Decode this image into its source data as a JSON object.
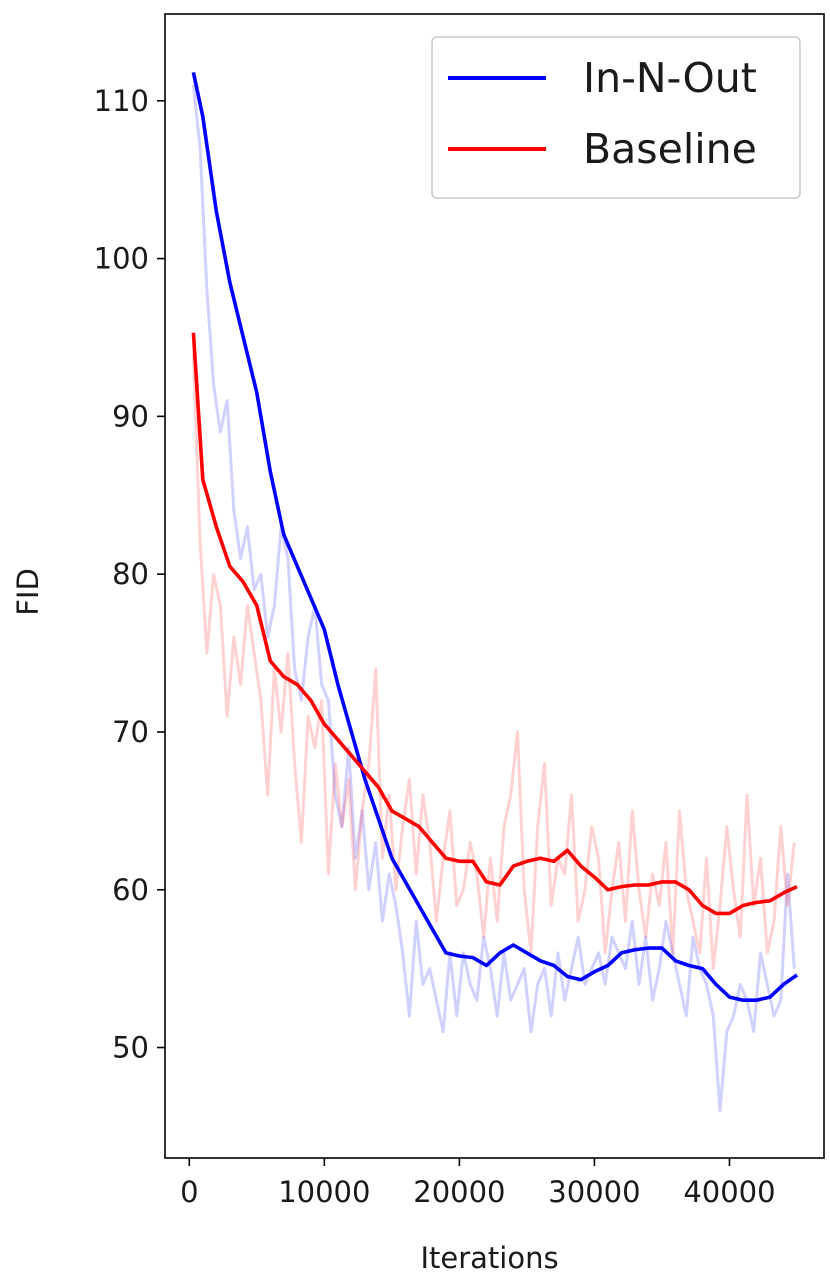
{
  "chart_data": {
    "type": "line",
    "title": "",
    "xlabel": "Iterations",
    "ylabel": "FID",
    "xlim": [
      -1800,
      47000
    ],
    "ylim": [
      43,
      115.5
    ],
    "xticks": [
      0,
      10000,
      20000,
      30000,
      40000
    ],
    "xtick_labels": [
      "0",
      "10000",
      "20000",
      "30000",
      "40000"
    ],
    "yticks": [
      50,
      60,
      70,
      80,
      90,
      100,
      110
    ],
    "ytick_labels": [
      "50",
      "60",
      "70",
      "80",
      "90",
      "100",
      "110"
    ],
    "grid": false,
    "legend": {
      "position": "top-right"
    },
    "series": [
      {
        "name": "In-N-Out",
        "color": "#0000ff",
        "x": [
          300,
          1000,
          2000,
          3000,
          4000,
          5000,
          6000,
          7000,
          8000,
          9000,
          10000,
          11000,
          12000,
          13000,
          14000,
          15000,
          16000,
          17000,
          18000,
          19000,
          20000,
          21000,
          22000,
          23000,
          24000,
          25000,
          26000,
          27000,
          28000,
          29000,
          30000,
          31000,
          32000,
          33000,
          34000,
          35000,
          36000,
          37000,
          38000,
          39000,
          40000,
          41000,
          42000,
          43000,
          44000,
          45000
        ],
        "values": [
          111.8,
          109,
          103,
          98.5,
          95,
          91.5,
          86.5,
          82.5,
          80.5,
          78.5,
          76.5,
          73,
          70,
          67,
          64.5,
          62,
          60.5,
          59,
          57.5,
          56,
          55.8,
          55.7,
          55.2,
          56,
          56.5,
          56,
          55.5,
          55.2,
          54.5,
          54.3,
          54.8,
          55.2,
          56,
          56.2,
          56.3,
          56.3,
          55.5,
          55.2,
          55,
          54,
          53.2,
          53,
          53,
          53.2,
          54,
          54.6
        ]
      },
      {
        "name": "Baseline",
        "color": "#ff0000",
        "x": [
          300,
          1000,
          2000,
          3000,
          4000,
          5000,
          6000,
          7000,
          8000,
          9000,
          10000,
          11000,
          12000,
          13000,
          14000,
          15000,
          16000,
          17000,
          18000,
          19000,
          20000,
          21000,
          22000,
          23000,
          24000,
          25000,
          26000,
          27000,
          28000,
          29000,
          30000,
          31000,
          32000,
          33000,
          34000,
          35000,
          36000,
          37000,
          38000,
          39000,
          40000,
          41000,
          42000,
          43000,
          44000,
          45000
        ],
        "values": [
          95.3,
          86,
          83,
          80.5,
          79.5,
          78,
          74.5,
          73.5,
          73,
          72,
          70.5,
          69.5,
          68.5,
          67.5,
          66.5,
          65,
          64.5,
          64,
          63,
          62,
          61.8,
          61.8,
          60.5,
          60.3,
          61.5,
          61.8,
          62,
          61.8,
          62.5,
          61.5,
          60.8,
          60,
          60.2,
          60.3,
          60.3,
          60.5,
          60.5,
          60,
          59,
          58.5,
          58.5,
          59,
          59.2,
          59.3,
          59.8,
          60.2
        ]
      },
      {
        "name": "",
        "color": "#0000ff",
        "raw": true,
        "x": [
          300,
          800,
          1300,
          1800,
          2300,
          2800,
          3300,
          3800,
          4300,
          4800,
          5300,
          5800,
          6300,
          6800,
          7300,
          7800,
          8300,
          8800,
          9300,
          9800,
          10300,
          10800,
          11300,
          11800,
          12300,
          12800,
          13300,
          13800,
          14300,
          14800,
          15300,
          15800,
          16300,
          16800,
          17300,
          17800,
          18300,
          18800,
          19300,
          19800,
          20300,
          20800,
          21300,
          21800,
          22300,
          22800,
          23300,
          23800,
          24300,
          24800,
          25300,
          25800,
          26300,
          26800,
          27300,
          27800,
          28300,
          28800,
          29300,
          29800,
          30300,
          30800,
          31300,
          31800,
          32300,
          32800,
          33300,
          33800,
          34300,
          34800,
          35300,
          35800,
          36300,
          36800,
          37300,
          37800,
          38300,
          38800,
          39300,
          39800,
          40300,
          40800,
          41300,
          41800,
          42300,
          42800,
          43300,
          43800,
          44300,
          44800
        ],
        "values": [
          111,
          107,
          98,
          92,
          89,
          91,
          84,
          81,
          83,
          79,
          80,
          76,
          78,
          83,
          81,
          74,
          72,
          76,
          78,
          73,
          72,
          66,
          64,
          69,
          62,
          65,
          60,
          63,
          58,
          61,
          59,
          56,
          52,
          58,
          54,
          55,
          53,
          51,
          56,
          52,
          56,
          54,
          53,
          57,
          55,
          52,
          56,
          53,
          54,
          55,
          51,
          54,
          55,
          52,
          56,
          53,
          55,
          57,
          54,
          55,
          56,
          54,
          57,
          56,
          55,
          58,
          54,
          57,
          53,
          55,
          58,
          56,
          54,
          52,
          57,
          55,
          54,
          52,
          46,
          51,
          52,
          54,
          53,
          51,
          56,
          54,
          52,
          53,
          61,
          55
        ]
      },
      {
        "name": "",
        "color": "#ff0000",
        "raw": true,
        "x": [
          300,
          800,
          1300,
          1800,
          2300,
          2800,
          3300,
          3800,
          4300,
          4800,
          5300,
          5800,
          6300,
          6800,
          7300,
          7800,
          8300,
          8800,
          9300,
          9800,
          10300,
          10800,
          11300,
          11800,
          12300,
          12800,
          13300,
          13800,
          14300,
          14800,
          15300,
          15800,
          16300,
          16800,
          17300,
          17800,
          18300,
          18800,
          19300,
          19800,
          20300,
          20800,
          21300,
          21800,
          22300,
          22800,
          23300,
          23800,
          24300,
          24800,
          25300,
          25800,
          26300,
          26800,
          27300,
          27800,
          28300,
          28800,
          29300,
          29800,
          30300,
          30800,
          31300,
          31800,
          32300,
          32800,
          33300,
          33800,
          34300,
          34800,
          35300,
          35800,
          36300,
          36800,
          37300,
          37800,
          38300,
          38800,
          39300,
          39800,
          40300,
          40800,
          41300,
          41800,
          42300,
          42800,
          43300,
          43800,
          44300,
          44800
        ],
        "values": [
          94,
          82,
          75,
          80,
          78,
          71,
          76,
          73,
          78,
          75,
          72,
          66,
          74,
          70,
          75,
          68,
          63,
          71,
          69,
          72,
          61,
          68,
          64,
          67,
          60,
          65,
          68,
          74,
          62,
          66,
          60,
          64,
          67,
          61,
          66,
          63,
          58,
          62,
          65,
          59,
          60,
          63,
          61,
          57,
          62,
          58,
          64,
          66,
          70,
          60,
          56,
          64,
          68,
          59,
          62,
          61,
          66,
          58,
          60,
          64,
          62,
          56,
          60,
          63,
          58,
          65,
          60,
          57,
          61,
          59,
          63,
          56,
          65,
          60,
          58,
          56,
          62,
          55,
          59,
          64,
          60,
          57,
          66,
          59,
          62,
          56,
          58,
          64,
          59,
          63
        ]
      }
    ]
  }
}
